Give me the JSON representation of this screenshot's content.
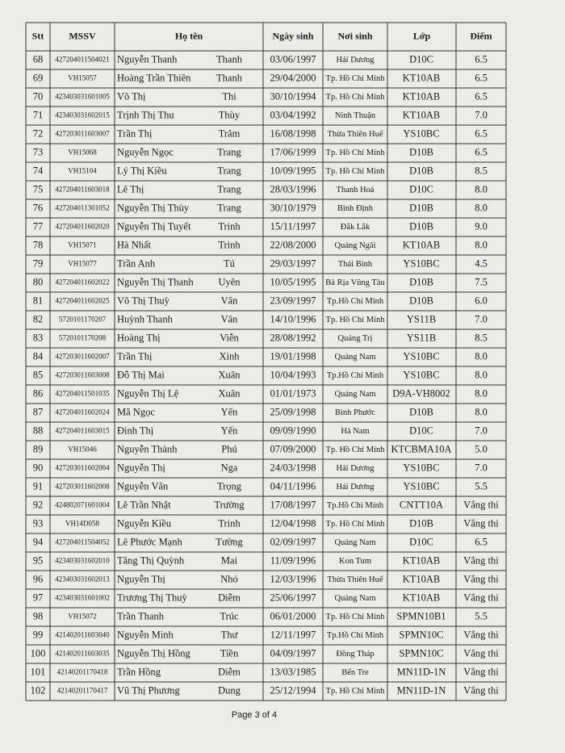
{
  "table": {
    "headers": [
      "Stt",
      "MSSV",
      "Họ tên",
      "Ngày sinh",
      "Nơi sinh",
      "Lớp",
      "Điểm"
    ],
    "rows": [
      [
        "68",
        "427204011504021",
        "Nguyễn Thanh",
        "Thanh",
        "03/06/1997",
        "Hải Dương",
        "D10C",
        "6.5"
      ],
      [
        "69",
        "VH15057",
        "Hoàng Trần Thiên",
        "Thanh",
        "29/04/2000",
        "Tp. Hồ Chí Minh",
        "KT10AB",
        "6.5"
      ],
      [
        "70",
        "423403031601005",
        "Võ Thị",
        "Thi",
        "30/10/1994",
        "Tp. Hồ Chí Minh",
        "KT10AB",
        "6.5"
      ],
      [
        "71",
        "423403031602015",
        "Trịnh Thị Thu",
        "Thùy",
        "03/04/1992",
        "Ninh Thuận",
        "KT10AB",
        "7.0"
      ],
      [
        "72",
        "427203011603007",
        "Trần Thị",
        "Trâm",
        "16/08/1998",
        "Thừa Thiên Huế",
        "YS10BC",
        "6.5"
      ],
      [
        "73",
        "VH15068",
        "Nguyễn Ngọc",
        "Trang",
        "17/06/1999",
        "Tp. Hồ Chí Minh",
        "D10B",
        "6.5"
      ],
      [
        "74",
        "VH15104",
        "Lý Thị Kiều",
        "Trang",
        "10/09/1995",
        "Tp. Hồ Chí Minh",
        "D10B",
        "8.5"
      ],
      [
        "75",
        "427204011603018",
        "Lê Thị",
        "Trang",
        "28/03/1996",
        "Thanh Hoá",
        "D10C",
        "8.0"
      ],
      [
        "76",
        "427204011301052",
        "Nguyễn Thị Thùy",
        "Trang",
        "30/10/1979",
        "Bình Định",
        "D10B",
        "8.0"
      ],
      [
        "77",
        "427204011602020",
        "Nguyễn Thị Tuyết",
        "Trinh",
        "15/11/1997",
        "Đắk Lắk",
        "D10B",
        "9.0"
      ],
      [
        "78",
        "VH15071",
        "Hà Nhất",
        "Trinh",
        "22/08/2000",
        "Quảng Ngãi",
        "KT10AB",
        "8.0"
      ],
      [
        "79",
        "VH15077",
        "Trần Anh",
        "Tú",
        "29/03/1997",
        "Thái Bình",
        "YS10BC",
        "4.5"
      ],
      [
        "80",
        "427204011602022",
        "Nguyễn Thị Thanh",
        "Uyên",
        "10/05/1995",
        "Bà Rịa Vũng Tàu",
        "D10B",
        "7.5"
      ],
      [
        "81",
        "427204011602025",
        "Võ Thị Thuỳ",
        "Vân",
        "23/09/1997",
        "Tp.Hồ Chí Minh",
        "D10B",
        "6.0"
      ],
      [
        "82",
        "5720101170207",
        "Huỳnh Thanh",
        "Vân",
        "14/10/1996",
        "Tp. Hồ Chí Minh",
        "YS11B",
        "7.0"
      ],
      [
        "83",
        "5720101170208",
        "Hoàng Thị",
        "Viễn",
        "28/08/1992",
        "Quảng Trị",
        "YS11B",
        "8.5"
      ],
      [
        "84",
        "427203011602007",
        "Trần Thị",
        "Xinh",
        "19/01/1998",
        "Quảng Nam",
        "YS10BC",
        "8.0"
      ],
      [
        "85",
        "427203011603008",
        "Đỗ Thị Mai",
        "Xuân",
        "10/04/1993",
        "Tp.Hồ Chí Minh",
        "YS10BC",
        "8.0"
      ],
      [
        "86",
        "427204011501035",
        "Nguyễn Thị Lệ",
        "Xuân",
        "01/01/1973",
        "Quảng Nam",
        "D9A-VH8002",
        "8.0"
      ],
      [
        "87",
        "427204011602024",
        "Mã Ngọc",
        "Yến",
        "25/09/1998",
        "Bình Phước",
        "D10B",
        "8.0"
      ],
      [
        "88",
        "427204011603015",
        "Đinh Thị",
        "Yến",
        "09/09/1990",
        "Hà Nam",
        "D10C",
        "7.0"
      ],
      [
        "89",
        "VH15046",
        "Nguyễn Thành",
        "Phú",
        "07/09/2000",
        "Tp. Hồ Chí Minh",
        "KTCBMA10A",
        "5.0"
      ],
      [
        "90",
        "427203011602004",
        "Nguyễn Thị",
        "Nga",
        "24/03/1998",
        "Hải Dương",
        "YS10BC",
        "7.0"
      ],
      [
        "91",
        "427203011602008",
        "Nguyễn Văn",
        "Trọng",
        "04/11/1996",
        "Hải Dương",
        "YS10BC",
        "5.5"
      ],
      [
        "92",
        "424802071601004",
        "Lê Trần Nhật",
        "Trường",
        "17/08/1997",
        "Tp.Hồ Chí Minh",
        "CNTT10A",
        "Vắng thi"
      ],
      [
        "93",
        "VH14D058",
        "Nguyễn Kiều",
        "Trinh",
        "12/04/1998",
        "Tp. Hồ Chí Minh",
        "D10B",
        "Vắng thi"
      ],
      [
        "94",
        "427204011504052",
        "Lê Phước Mạnh",
        "Tường",
        "02/09/1997",
        "Quảng Nam",
        "D10C",
        "6.5"
      ],
      [
        "95",
        "423403031602010",
        "Tăng Thị Quỳnh",
        "Mai",
        "11/09/1996",
        "Kon Tum",
        "KT10AB",
        "Vắng thi"
      ],
      [
        "96",
        "423403031602013",
        "Nguyễn Thị",
        "Nhỏ",
        "12/03/1996",
        "Thừa Thiên Huế",
        "KT10AB",
        "Vắng thi"
      ],
      [
        "97",
        "423403031601002",
        "Trương Thị Thuỳ",
        "Diễm",
        "25/06/1997",
        "Quảng Nam",
        "KT10AB",
        "Vắng thi"
      ],
      [
        "98",
        "VH15072",
        "Trần Thanh",
        "Trúc",
        "06/01/2000",
        "Tp. Hồ Chí Minh",
        "SPMN10B1",
        "5.5"
      ],
      [
        "99",
        "421402011603040",
        "Nguyễn Minh",
        "Thư",
        "12/11/1997",
        "Tp.Hồ Chí Minh",
        "SPMN10C",
        "Vắng thi"
      ],
      [
        "100",
        "421402011603035",
        "Nguyễn Thị Hồng",
        "Tiền",
        "04/09/1997",
        "Đồng Tháp",
        "SPMN10C",
        "Vắng thi"
      ],
      [
        "101",
        "42140201170418",
        "Trần Hồng",
        "Diễm",
        "13/03/1985",
        "Bến Tre",
        "MN11D-1N",
        "Vắng thi"
      ],
      [
        "102",
        "42140201170417",
        "Vũ Thị Phương",
        "Dung",
        "25/12/1994",
        "Tp. Hồ Chí Minh",
        "MN11D-1N",
        "Vắng thi"
      ]
    ]
  },
  "footer": "Page 3 of 4"
}
